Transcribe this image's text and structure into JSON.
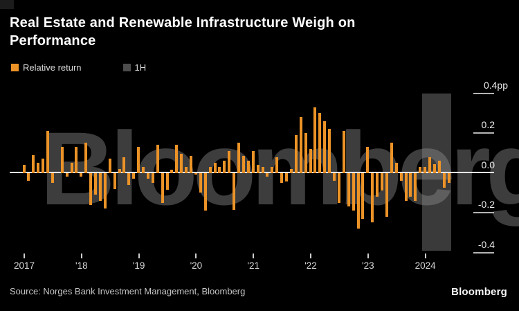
{
  "title": {
    "line1": "Real Estate and Renewable Infrastructure Weigh on",
    "line2": "Performance"
  },
  "legend": {
    "items": [
      {
        "label": "Relative return",
        "color": "#EC9327"
      },
      {
        "label": "1H",
        "color": "#3A3A3A"
      }
    ]
  },
  "watermark": "Bloomberg",
  "source_line": "Source: Norges Bank Investment Management, Bloomberg",
  "brand_logo": "Bloomberg",
  "colors": {
    "background": "#000000",
    "bar_orange": "#EC9327",
    "band_gray": "#3A3A3A",
    "watermark_gray": "#919191",
    "zero_line": "#E8E8E8",
    "axis_text": "#EDEDED",
    "title_text": "#FFFFFF"
  },
  "y_axis": {
    "unit_suffix": "pp",
    "labels": [
      "0.4pp",
      "0.2",
      "0.0",
      "-0.2",
      "-0.4"
    ],
    "values": [
      0.4,
      0.2,
      0.0,
      -0.2,
      -0.4
    ]
  },
  "x_axis": {
    "labels": [
      "2017",
      "'18",
      "'19",
      "'20",
      "'21",
      "'22",
      "'23",
      "2024"
    ]
  },
  "chart_data": {
    "type": "bar",
    "title": "Real Estate and Renewable Infrastructure Weigh on Performance",
    "xlabel": "",
    "ylabel": "Relative return (percentage points)",
    "ylim": [
      -0.45,
      0.45
    ],
    "grid": false,
    "legend_position": "top-left",
    "series_name": "Relative return",
    "unit": "pp",
    "highlight_band": {
      "label": "1H",
      "start": "2024-01",
      "end": "2024-06"
    },
    "x": [
      "2017-01",
      "2017-02",
      "2017-03",
      "2017-04",
      "2017-05",
      "2017-06",
      "2017-07",
      "2017-08",
      "2017-09",
      "2017-10",
      "2017-11",
      "2017-12",
      "2018-01",
      "2018-02",
      "2018-03",
      "2018-04",
      "2018-05",
      "2018-06",
      "2018-07",
      "2018-08",
      "2018-09",
      "2018-10",
      "2018-11",
      "2018-12",
      "2019-01",
      "2019-02",
      "2019-03",
      "2019-04",
      "2019-05",
      "2019-06",
      "2019-07",
      "2019-08",
      "2019-09",
      "2019-10",
      "2019-11",
      "2019-12",
      "2020-01",
      "2020-02",
      "2020-03",
      "2020-04",
      "2020-05",
      "2020-06",
      "2020-07",
      "2020-08",
      "2020-09",
      "2020-10",
      "2020-11",
      "2020-12",
      "2021-01",
      "2021-02",
      "2021-03",
      "2021-04",
      "2021-05",
      "2021-06",
      "2021-07",
      "2021-08",
      "2021-09",
      "2021-10",
      "2021-11",
      "2021-12",
      "2022-01",
      "2022-02",
      "2022-03",
      "2022-04",
      "2022-05",
      "2022-06",
      "2022-07",
      "2022-08",
      "2022-09",
      "2022-10",
      "2022-11",
      "2022-12",
      "2023-01",
      "2023-02",
      "2023-03",
      "2023-04",
      "2023-05",
      "2023-06",
      "2023-07",
      "2023-08",
      "2023-09",
      "2023-10",
      "2023-11",
      "2023-12",
      "2024-01",
      "2024-02",
      "2024-03",
      "2024-04",
      "2024-05",
      "2024-06"
    ],
    "values": [
      0.04,
      -0.04,
      0.09,
      0.05,
      0.07,
      0.21,
      -0.05,
      0,
      0.13,
      -0.02,
      0.05,
      0.13,
      -0.02,
      0.15,
      -0.16,
      -0.11,
      -0.14,
      -0.18,
      0.07,
      -0.08,
      0.02,
      0.08,
      -0.06,
      -0.03,
      0.13,
      0.03,
      -0.03,
      -0.05,
      0.14,
      -0.15,
      -0.085,
      0.015,
      0.14,
      0.095,
      0.03,
      0.085,
      -0.01,
      -0.1,
      -0.19,
      0.03,
      0.05,
      0.03,
      0.06,
      0.11,
      -0.185,
      0.15,
      0.085,
      0.06,
      0.11,
      0.04,
      0.03,
      -0.02,
      0.03,
      0.08,
      -0.05,
      -0.045,
      0.02,
      0.19,
      0.28,
      0.2,
      0.12,
      0.33,
      0.3,
      0.26,
      0.22,
      -0.04,
      -0.15,
      0.21,
      -0.17,
      -0.19,
      -0.28,
      -0.23,
      0.13,
      -0.25,
      -0.12,
      -0.09,
      -0.22,
      0.15,
      0.05,
      -0.04,
      -0.14,
      -0.12,
      -0.14,
      0.03,
      0.03,
      0.08,
      0.045,
      0.06,
      -0.075,
      -0.05
    ]
  }
}
